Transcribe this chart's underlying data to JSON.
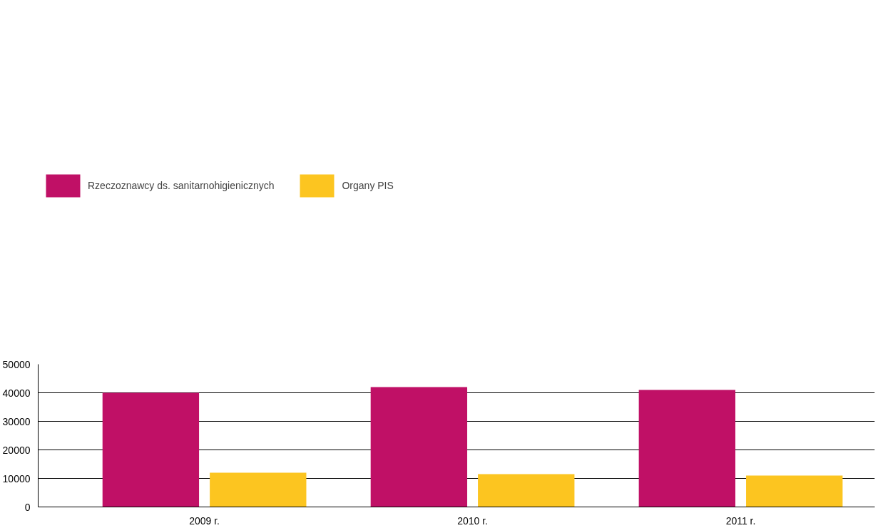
{
  "chart_data": {
    "type": "bar",
    "categories": [
      "2009 r.",
      "2010 r.",
      "2011 r."
    ],
    "series": [
      {
        "name": "Rzeczoznawcy ds. sanitarnohigienicznych",
        "color": "#c01066",
        "values": [
          40000,
          42000,
          41000
        ]
      },
      {
        "name": "Organy PIS",
        "color": "#fcc520",
        "values": [
          12000,
          11500,
          11000
        ]
      }
    ],
    "ylim": [
      0,
      50000
    ],
    "yticks": [
      0,
      10000,
      20000,
      30000,
      40000,
      50000
    ],
    "grid": "y",
    "legend": "top left"
  }
}
